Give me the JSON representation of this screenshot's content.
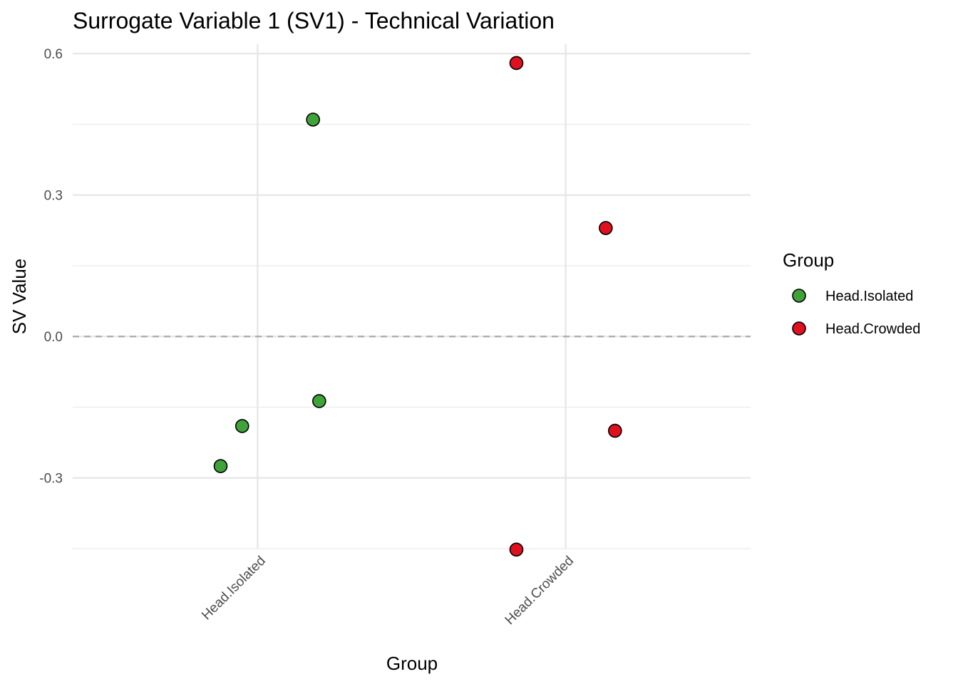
{
  "chart_data": {
    "type": "scatter",
    "title": "Surrogate Variable 1 (SV1) - Technical Variation",
    "xlabel": "Group",
    "ylabel": "SV Value",
    "categories": [
      "Head.Isolated",
      "Head.Crowded"
    ],
    "ylim": [
      -0.45,
      0.62
    ],
    "yticks": [
      -0.3,
      0.0,
      0.3,
      0.6
    ],
    "ytick_labels": [
      "-0.3",
      "0.0",
      "0.3",
      "0.6"
    ],
    "reference_line": {
      "y": 0.0,
      "style": "dashed"
    },
    "grid": true,
    "legend": {
      "title": "Group",
      "placement": "right",
      "entries": [
        {
          "label": "Head.Isolated",
          "color": "#3fa33a"
        },
        {
          "label": "Head.Crowded",
          "color": "#e0101f"
        }
      ]
    },
    "series": [
      {
        "category": "Head.Isolated",
        "color": "#3fa33a",
        "points": [
          {
            "x": 1.18,
            "y": 0.46
          },
          {
            "x": 1.2,
            "y": -0.137
          },
          {
            "x": 0.95,
            "y": -0.19
          },
          {
            "x": 0.88,
            "y": -0.275
          }
        ]
      },
      {
        "category": "Head.Crowded",
        "color": "#e0101f",
        "points": [
          {
            "x": 1.84,
            "y": 0.58
          },
          {
            "x": 2.13,
            "y": 0.23
          },
          {
            "x": 2.16,
            "y": -0.2
          },
          {
            "x": 1.84,
            "y": -0.452
          }
        ]
      }
    ]
  }
}
